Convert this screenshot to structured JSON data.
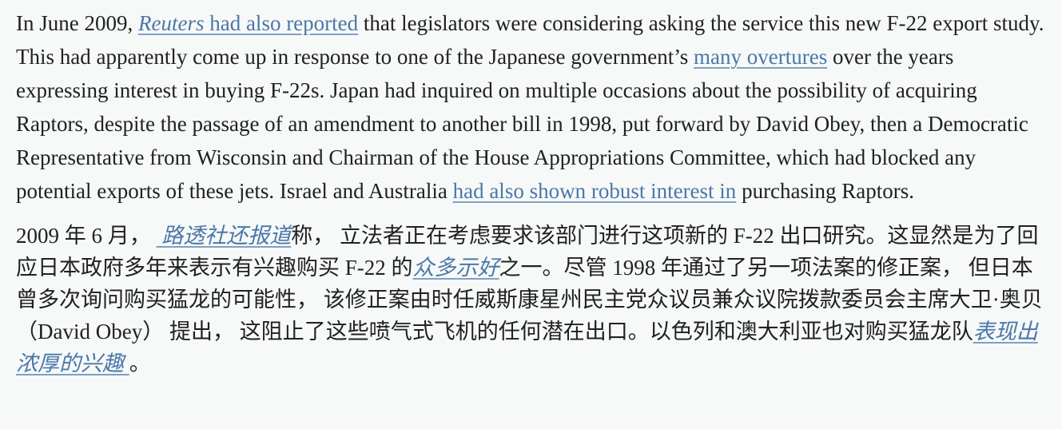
{
  "page": {
    "background_color": "#f7f8f8",
    "text_color": "#202122",
    "link_color": "#4a78a8",
    "link_underline_color": "#7ca1c4"
  },
  "article": {
    "english_paragraph": {
      "t0": "In June 2009, ",
      "link_reuters_italic": "Reuters",
      "link_reuters_rest": " had also reported",
      "t1": " that legislators were considering asking the service this new F-22 export study. This had apparently come up in response to one of the Japanese government’s ",
      "link_overtures": "many overtures",
      "t2": " over the years expressing interest in buying F-22s. Japan had inquired on multiple occasions about the possibility of acquiring Raptors, despite the passage of an amendment to another bill in 1998, put forward by David Obey, then a Democratic Representative from Wisconsin and Chairman of the House Appropriations Committee, which had blocked any potential exports of these jets. Israel and Australia ",
      "link_interest": "had also shown robust interest in",
      "t3": " purchasing Raptors."
    },
    "chinese_paragraph": {
      "t0": "2009 年 6 月， ",
      "link_reuters": " 路透社还报道",
      "t1": "称， 立法者正在考虑要求该部门进行这项新的 F-22 出口研究。这显然是为了回应日本政府多年来表示有兴趣购买 F-22 的",
      "link_overtures": "众多示好",
      "t2": "之一。尽管 1998 年通过了另一项法案的修正案， 但日本曾多次询问购买猛龙的可能性， 该修正案由时任威斯康星州民主党众议员兼众议院拨款委员会主席大卫·奥贝（David Obey） 提出， 这阻止了这些喷气式飞机的任何潜在出口。以色列和澳大利亚也对购买猛龙队",
      "link_interest": "表现出浓厚的兴趣 ",
      "t3": "。"
    }
  }
}
